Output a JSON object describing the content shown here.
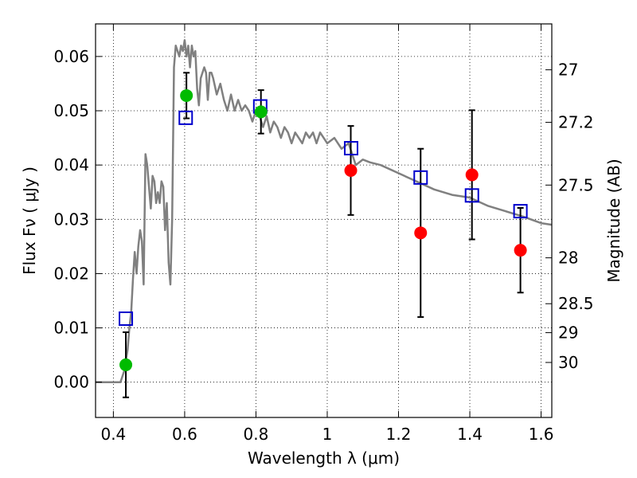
{
  "chart_data": {
    "type": "scatter",
    "title": "",
    "xlabel": "Wavelength  λ (μm)",
    "ylabel": "Flux  Fν  ( μJy )",
    "ylabel_right": "Magnitude (AB)",
    "xlim": [
      0.35,
      1.63
    ],
    "ylim": [
      -0.0065,
      0.066
    ],
    "grid": true,
    "x_ticks": [
      {
        "value": 0.4,
        "label": "0.4"
      },
      {
        "value": 0.6,
        "label": "0.6"
      },
      {
        "value": 0.8,
        "label": "0.8"
      },
      {
        "value": 1.0,
        "label": "1"
      },
      {
        "value": 1.2,
        "label": "1.2"
      },
      {
        "value": 1.4,
        "label": "1.4"
      },
      {
        "value": 1.6,
        "label": "1.6"
      }
    ],
    "y_ticks": [
      {
        "value": 0.0,
        "label": "0.00"
      },
      {
        "value": 0.01,
        "label": "0.01"
      },
      {
        "value": 0.02,
        "label": "0.02"
      },
      {
        "value": 0.03,
        "label": "0.03"
      },
      {
        "value": 0.04,
        "label": "0.04"
      },
      {
        "value": 0.05,
        "label": "0.05"
      },
      {
        "value": 0.06,
        "label": "0.06"
      }
    ],
    "right_ticks": [
      {
        "value": 27,
        "label": "27"
      },
      {
        "value": 27.2,
        "label": "27.2"
      },
      {
        "value": 27.5,
        "label": "27.5"
      },
      {
        "value": 28,
        "label": "28"
      },
      {
        "value": 28.5,
        "label": "28.5"
      },
      {
        "value": 29,
        "label": "29"
      },
      {
        "value": 30,
        "label": "30"
      }
    ],
    "colors": {
      "model": "#808080",
      "green": "#00bb00",
      "red": "#ff0000",
      "square": "#0000cc",
      "errorbar": "#000000"
    },
    "model_sed": {
      "x": [
        0.35,
        0.42,
        0.425,
        0.43,
        0.435,
        0.44,
        0.445,
        0.45,
        0.455,
        0.46,
        0.465,
        0.47,
        0.475,
        0.48,
        0.485,
        0.49,
        0.495,
        0.5,
        0.505,
        0.51,
        0.515,
        0.52,
        0.525,
        0.53,
        0.535,
        0.54,
        0.545,
        0.55,
        0.555,
        0.56,
        0.565,
        0.57,
        0.575,
        0.58,
        0.585,
        0.59,
        0.595,
        0.6,
        0.605,
        0.61,
        0.615,
        0.62,
        0.625,
        0.63,
        0.635,
        0.64,
        0.645,
        0.65,
        0.655,
        0.66,
        0.665,
        0.67,
        0.675,
        0.68,
        0.69,
        0.7,
        0.71,
        0.72,
        0.73,
        0.74,
        0.75,
        0.76,
        0.77,
        0.78,
        0.79,
        0.8,
        0.81,
        0.82,
        0.83,
        0.84,
        0.85,
        0.86,
        0.87,
        0.88,
        0.89,
        0.9,
        0.91,
        0.92,
        0.93,
        0.94,
        0.95,
        0.96,
        0.97,
        0.98,
        0.99,
        1.0,
        1.02,
        1.04,
        1.06,
        1.08,
        1.1,
        1.12,
        1.15,
        1.2,
        1.25,
        1.3,
        1.35,
        1.4,
        1.45,
        1.5,
        1.55,
        1.6,
        1.63
      ],
      "y": [
        0.0,
        0.0,
        0.001,
        0.002,
        0.004,
        0.006,
        0.01,
        0.013,
        0.019,
        0.024,
        0.02,
        0.025,
        0.028,
        0.026,
        0.018,
        0.042,
        0.04,
        0.036,
        0.032,
        0.038,
        0.037,
        0.033,
        0.035,
        0.033,
        0.037,
        0.036,
        0.028,
        0.033,
        0.022,
        0.018,
        0.03,
        0.058,
        0.062,
        0.061,
        0.06,
        0.062,
        0.061,
        0.063,
        0.06,
        0.062,
        0.058,
        0.062,
        0.06,
        0.061,
        0.054,
        0.051,
        0.056,
        0.057,
        0.058,
        0.057,
        0.052,
        0.057,
        0.057,
        0.056,
        0.053,
        0.055,
        0.052,
        0.05,
        0.053,
        0.05,
        0.052,
        0.05,
        0.051,
        0.05,
        0.048,
        0.05,
        0.049,
        0.047,
        0.049,
        0.046,
        0.048,
        0.047,
        0.045,
        0.047,
        0.046,
        0.044,
        0.046,
        0.045,
        0.044,
        0.046,
        0.045,
        0.046,
        0.044,
        0.046,
        0.045,
        0.044,
        0.045,
        0.043,
        0.044,
        0.04,
        0.041,
        0.0405,
        0.04,
        0.0385,
        0.037,
        0.0355,
        0.0345,
        0.034,
        0.0325,
        0.0315,
        0.0305,
        0.0293,
        0.029
      ]
    },
    "green_points": [
      {
        "x": 0.435,
        "y": 0.0032,
        "err": 0.006
      },
      {
        "x": 0.605,
        "y": 0.0528,
        "err": 0.0042
      },
      {
        "x": 0.814,
        "y": 0.0498,
        "err": 0.004
      }
    ],
    "red_points": [
      {
        "x": 1.066,
        "y": 0.039,
        "err": 0.0082
      },
      {
        "x": 1.262,
        "y": 0.0275,
        "err": 0.0155
      },
      {
        "x": 1.406,
        "y": 0.0382,
        "err": 0.0119
      },
      {
        "x": 1.542,
        "y": 0.0243,
        "err": 0.0078
      }
    ],
    "model_squares": [
      {
        "x": 0.435,
        "y": 0.0117
      },
      {
        "x": 0.603,
        "y": 0.0487
      },
      {
        "x": 0.812,
        "y": 0.0508
      },
      {
        "x": 1.067,
        "y": 0.0431
      },
      {
        "x": 1.262,
        "y": 0.0377
      },
      {
        "x": 1.406,
        "y": 0.0344
      },
      {
        "x": 1.542,
        "y": 0.0315
      }
    ]
  }
}
